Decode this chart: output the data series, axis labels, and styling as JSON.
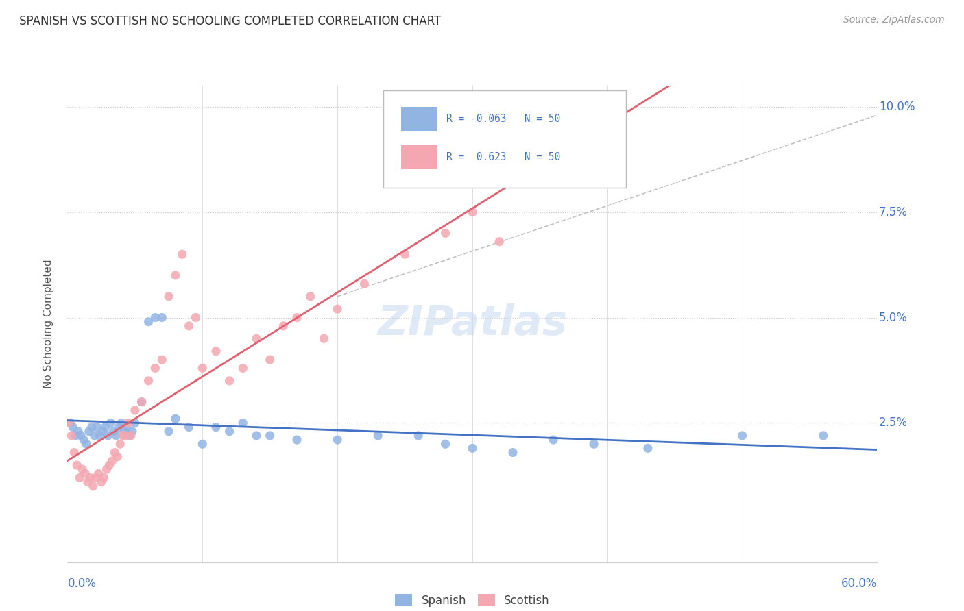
{
  "title": "SPANISH VS SCOTTISH NO SCHOOLING COMPLETED CORRELATION CHART",
  "source": "Source: ZipAtlas.com",
  "ylabel": "No Schooling Completed",
  "xlim": [
    0.0,
    0.6
  ],
  "ylim": [
    -0.008,
    0.105
  ],
  "spanish_color": "#92b4e3",
  "scottish_color": "#f4a7b0",
  "spanish_line_color": "#4472c4",
  "scottish_line_color": "#e06070",
  "grid_color": "#dddddd",
  "dotted_grid_color": "#cccccc",
  "watermark": "ZIPatlas",
  "spanish_points": [
    [
      0.002,
      0.025
    ],
    [
      0.004,
      0.024
    ],
    [
      0.006,
      0.022
    ],
    [
      0.008,
      0.023
    ],
    [
      0.01,
      0.022
    ],
    [
      0.012,
      0.021
    ],
    [
      0.014,
      0.02
    ],
    [
      0.016,
      0.023
    ],
    [
      0.018,
      0.024
    ],
    [
      0.02,
      0.022
    ],
    [
      0.022,
      0.024
    ],
    [
      0.024,
      0.022
    ],
    [
      0.026,
      0.023
    ],
    [
      0.028,
      0.024
    ],
    [
      0.03,
      0.022
    ],
    [
      0.032,
      0.025
    ],
    [
      0.034,
      0.023
    ],
    [
      0.036,
      0.022
    ],
    [
      0.038,
      0.024
    ],
    [
      0.04,
      0.025
    ],
    [
      0.042,
      0.023
    ],
    [
      0.044,
      0.024
    ],
    [
      0.046,
      0.022
    ],
    [
      0.048,
      0.023
    ],
    [
      0.05,
      0.025
    ],
    [
      0.055,
      0.03
    ],
    [
      0.06,
      0.049
    ],
    [
      0.065,
      0.05
    ],
    [
      0.07,
      0.05
    ],
    [
      0.075,
      0.023
    ],
    [
      0.08,
      0.026
    ],
    [
      0.09,
      0.024
    ],
    [
      0.1,
      0.02
    ],
    [
      0.11,
      0.024
    ],
    [
      0.12,
      0.023
    ],
    [
      0.13,
      0.025
    ],
    [
      0.14,
      0.022
    ],
    [
      0.15,
      0.022
    ],
    [
      0.17,
      0.021
    ],
    [
      0.2,
      0.021
    ],
    [
      0.23,
      0.022
    ],
    [
      0.26,
      0.022
    ],
    [
      0.28,
      0.02
    ],
    [
      0.3,
      0.019
    ],
    [
      0.33,
      0.018
    ],
    [
      0.36,
      0.021
    ],
    [
      0.39,
      0.02
    ],
    [
      0.43,
      0.019
    ],
    [
      0.5,
      0.022
    ],
    [
      0.56,
      0.022
    ]
  ],
  "scottish_points": [
    [
      0.001,
      0.025
    ],
    [
      0.003,
      0.022
    ],
    [
      0.005,
      0.018
    ],
    [
      0.007,
      0.015
    ],
    [
      0.009,
      0.012
    ],
    [
      0.011,
      0.014
    ],
    [
      0.013,
      0.013
    ],
    [
      0.015,
      0.011
    ],
    [
      0.017,
      0.012
    ],
    [
      0.019,
      0.01
    ],
    [
      0.021,
      0.012
    ],
    [
      0.023,
      0.013
    ],
    [
      0.025,
      0.011
    ],
    [
      0.027,
      0.012
    ],
    [
      0.029,
      0.014
    ],
    [
      0.031,
      0.015
    ],
    [
      0.033,
      0.016
    ],
    [
      0.035,
      0.018
    ],
    [
      0.037,
      0.017
    ],
    [
      0.039,
      0.02
    ],
    [
      0.041,
      0.022
    ],
    [
      0.043,
      0.022
    ],
    [
      0.045,
      0.025
    ],
    [
      0.047,
      0.022
    ],
    [
      0.05,
      0.028
    ],
    [
      0.055,
      0.03
    ],
    [
      0.06,
      0.035
    ],
    [
      0.065,
      0.038
    ],
    [
      0.07,
      0.04
    ],
    [
      0.075,
      0.055
    ],
    [
      0.08,
      0.06
    ],
    [
      0.085,
      0.065
    ],
    [
      0.09,
      0.048
    ],
    [
      0.095,
      0.05
    ],
    [
      0.1,
      0.038
    ],
    [
      0.11,
      0.042
    ],
    [
      0.12,
      0.035
    ],
    [
      0.13,
      0.038
    ],
    [
      0.14,
      0.045
    ],
    [
      0.15,
      0.04
    ],
    [
      0.16,
      0.048
    ],
    [
      0.17,
      0.05
    ],
    [
      0.18,
      0.055
    ],
    [
      0.19,
      0.045
    ],
    [
      0.2,
      0.052
    ],
    [
      0.22,
      0.058
    ],
    [
      0.25,
      0.065
    ],
    [
      0.28,
      0.07
    ],
    [
      0.3,
      0.075
    ],
    [
      0.32,
      0.068
    ]
  ],
  "spanish_R": -0.063,
  "scottish_R": 0.623,
  "N": 50
}
